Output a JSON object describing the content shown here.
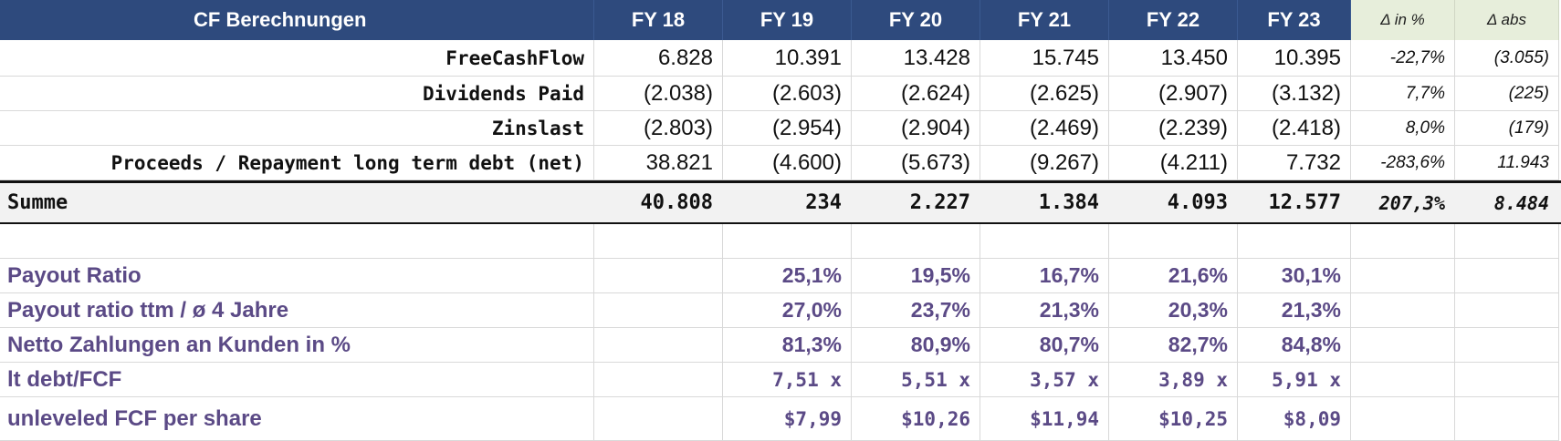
{
  "header": {
    "title": "CF Berechnungen",
    "years": [
      "FY 18",
      "FY 19",
      "FY 20",
      "FY 21",
      "FY 22",
      "FY 23"
    ],
    "delta_pct": "Δ in %",
    "delta_abs": "Δ abs"
  },
  "rows": [
    {
      "label": "FreeCashFlow",
      "values": [
        "6.828",
        "10.391",
        "13.428",
        "15.745",
        "13.450",
        "10.395"
      ],
      "delta_pct": "-22,7%",
      "delta_abs": "(3.055)"
    },
    {
      "label": "Dividends Paid",
      "values": [
        "(2.038)",
        "(2.603)",
        "(2.624)",
        "(2.625)",
        "(2.907)",
        "(3.132)"
      ],
      "delta_pct": "7,7%",
      "delta_abs": "(225)"
    },
    {
      "label": "Zinslast",
      "values": [
        "(2.803)",
        "(2.954)",
        "(2.904)",
        "(2.469)",
        "(2.239)",
        "(2.418)"
      ],
      "delta_pct": "8,0%",
      "delta_abs": "(179)"
    },
    {
      "label": "Proceeds / Repayment long term debt (net)",
      "values": [
        "38.821",
        "(4.600)",
        "(5.673)",
        "(9.267)",
        "(4.211)",
        "7.732"
      ],
      "delta_pct": "-283,6%",
      "delta_abs": "11.943"
    }
  ],
  "summe": {
    "label": "Summe",
    "values": [
      "40.808",
      "234",
      "2.227",
      "1.384",
      "4.093",
      "12.577"
    ],
    "delta_pct": "207,3%",
    "delta_abs": "8.484"
  },
  "kpis": [
    {
      "label": "Payout Ratio",
      "values": [
        "",
        "25,1%",
        "19,5%",
        "16,7%",
        "21,6%",
        "30,1%"
      ]
    },
    {
      "label": "Payout ratio ttm / ø 4 Jahre",
      "values": [
        "",
        "27,0%",
        "23,7%",
        "21,3%",
        "20,3%",
        "21,3%"
      ]
    },
    {
      "label": "Netto Zahlungen an Kunden in %",
      "values": [
        "",
        "81,3%",
        "80,9%",
        "80,7%",
        "82,7%",
        "84,8%"
      ]
    },
    {
      "label": "lt debt/FCF",
      "values": [
        "",
        "7,51 x",
        "5,51 x",
        "3,57 x",
        "3,89 x",
        "5,91 x"
      ]
    },
    {
      "label": "unleveled FCF per share",
      "values": [
        "",
        "$7,99",
        "$10,26",
        "$11,94",
        "$10,25",
        "$8,09"
      ]
    }
  ],
  "colors": {
    "header_bg": "#2e4a7d",
    "delta_header_bg": "#e7eedb",
    "kpi_text": "#5b4a86",
    "summe_bg": "#f2f2f2"
  }
}
